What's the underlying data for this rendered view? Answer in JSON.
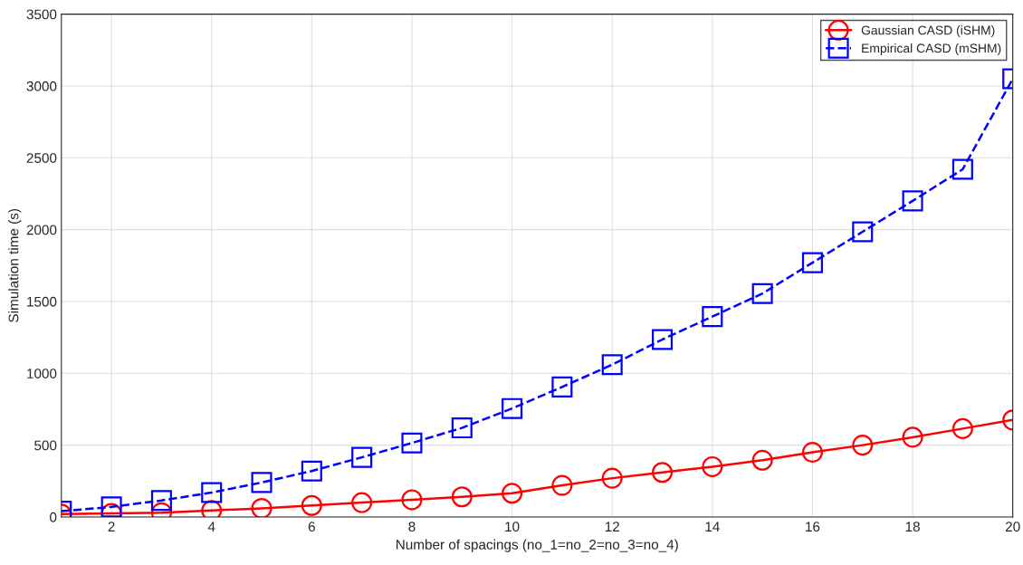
{
  "chart_data": {
    "type": "line",
    "xlabel": "Number of spacings (no_1=no_2=no_3=no_4)",
    "ylabel": "Simulation time (s)",
    "x": [
      1,
      2,
      3,
      4,
      5,
      6,
      7,
      8,
      9,
      10,
      11,
      12,
      13,
      14,
      15,
      16,
      17,
      18,
      19,
      20
    ],
    "series": [
      {
        "name": "Gaussian CASD (iSHM)",
        "color": "#ff0000",
        "marker": "circle",
        "line_style": "solid",
        "values": [
          20,
          25,
          30,
          45,
          60,
          80,
          100,
          120,
          140,
          165,
          220,
          270,
          310,
          350,
          395,
          450,
          500,
          555,
          615,
          675
        ]
      },
      {
        "name": "Empirical CASD (mSHM)",
        "color": "#0000ff",
        "marker": "square",
        "line_style": "dashed",
        "values": [
          40,
          70,
          115,
          170,
          240,
          320,
          415,
          515,
          620,
          755,
          905,
          1060,
          1235,
          1395,
          1555,
          1770,
          1985,
          2200,
          2420,
          3050
        ]
      }
    ],
    "xlim": [
      1,
      20
    ],
    "xticks": [
      2,
      4,
      6,
      8,
      10,
      12,
      14,
      16,
      18,
      20
    ],
    "ylim": [
      0,
      3500
    ],
    "yticks": [
      0,
      500,
      1000,
      1500,
      2000,
      2500,
      3000,
      3500
    ],
    "grid": true,
    "legend": "top right"
  }
}
